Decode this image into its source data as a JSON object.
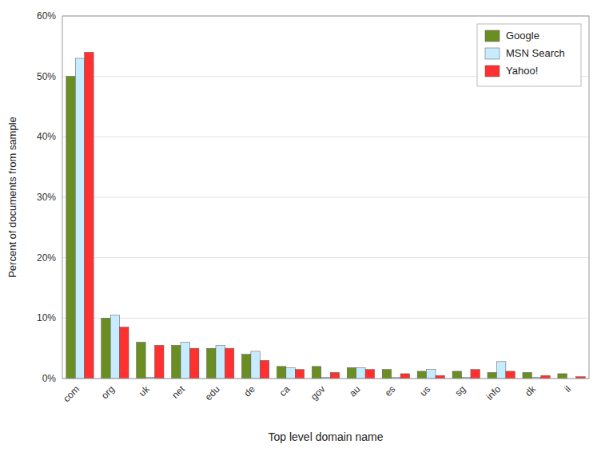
{
  "chart_data": {
    "type": "bar",
    "categories": [
      "com",
      "org",
      "uk",
      "net",
      "edu",
      "de",
      "ca",
      "gov",
      "au",
      "es",
      "us",
      "sg",
      "info",
      "dk",
      "il"
    ],
    "series": [
      {
        "name": "Google",
        "color": "#6B8E23",
        "values": [
          50.0,
          10.0,
          6.0,
          5.5,
          5.0,
          4.0,
          2.0,
          2.0,
          1.8,
          1.5,
          1.2,
          1.2,
          1.0,
          1.0,
          0.8
        ]
      },
      {
        "name": "MSN Search",
        "color": "#C8ECFF",
        "values": [
          53.0,
          10.5,
          0.2,
          6.0,
          5.5,
          4.5,
          1.8,
          0.2,
          1.8,
          0.2,
          1.5,
          0.2,
          2.8,
          0.2,
          0.0
        ]
      },
      {
        "name": "Yahoo!",
        "color": "#FF3030",
        "values": [
          54.0,
          8.5,
          5.5,
          5.0,
          5.0,
          3.0,
          1.5,
          1.0,
          1.5,
          0.8,
          0.5,
          1.5,
          1.2,
          0.5,
          0.3
        ]
      }
    ],
    "x_label": "Top level domain name",
    "y_label": "Percent of documents from sample",
    "ylim": [
      0,
      60
    ],
    "yticks": [
      {
        "value": 0,
        "label": "0%"
      },
      {
        "value": 10,
        "label": "10%"
      },
      {
        "value": 20,
        "label": "20%"
      },
      {
        "value": 30,
        "label": "30%"
      },
      {
        "value": 40,
        "label": "40%"
      },
      {
        "value": 50,
        "label": "50%"
      },
      {
        "value": 60,
        "label": "60%"
      }
    ],
    "grid": true,
    "legend": "upper right"
  }
}
